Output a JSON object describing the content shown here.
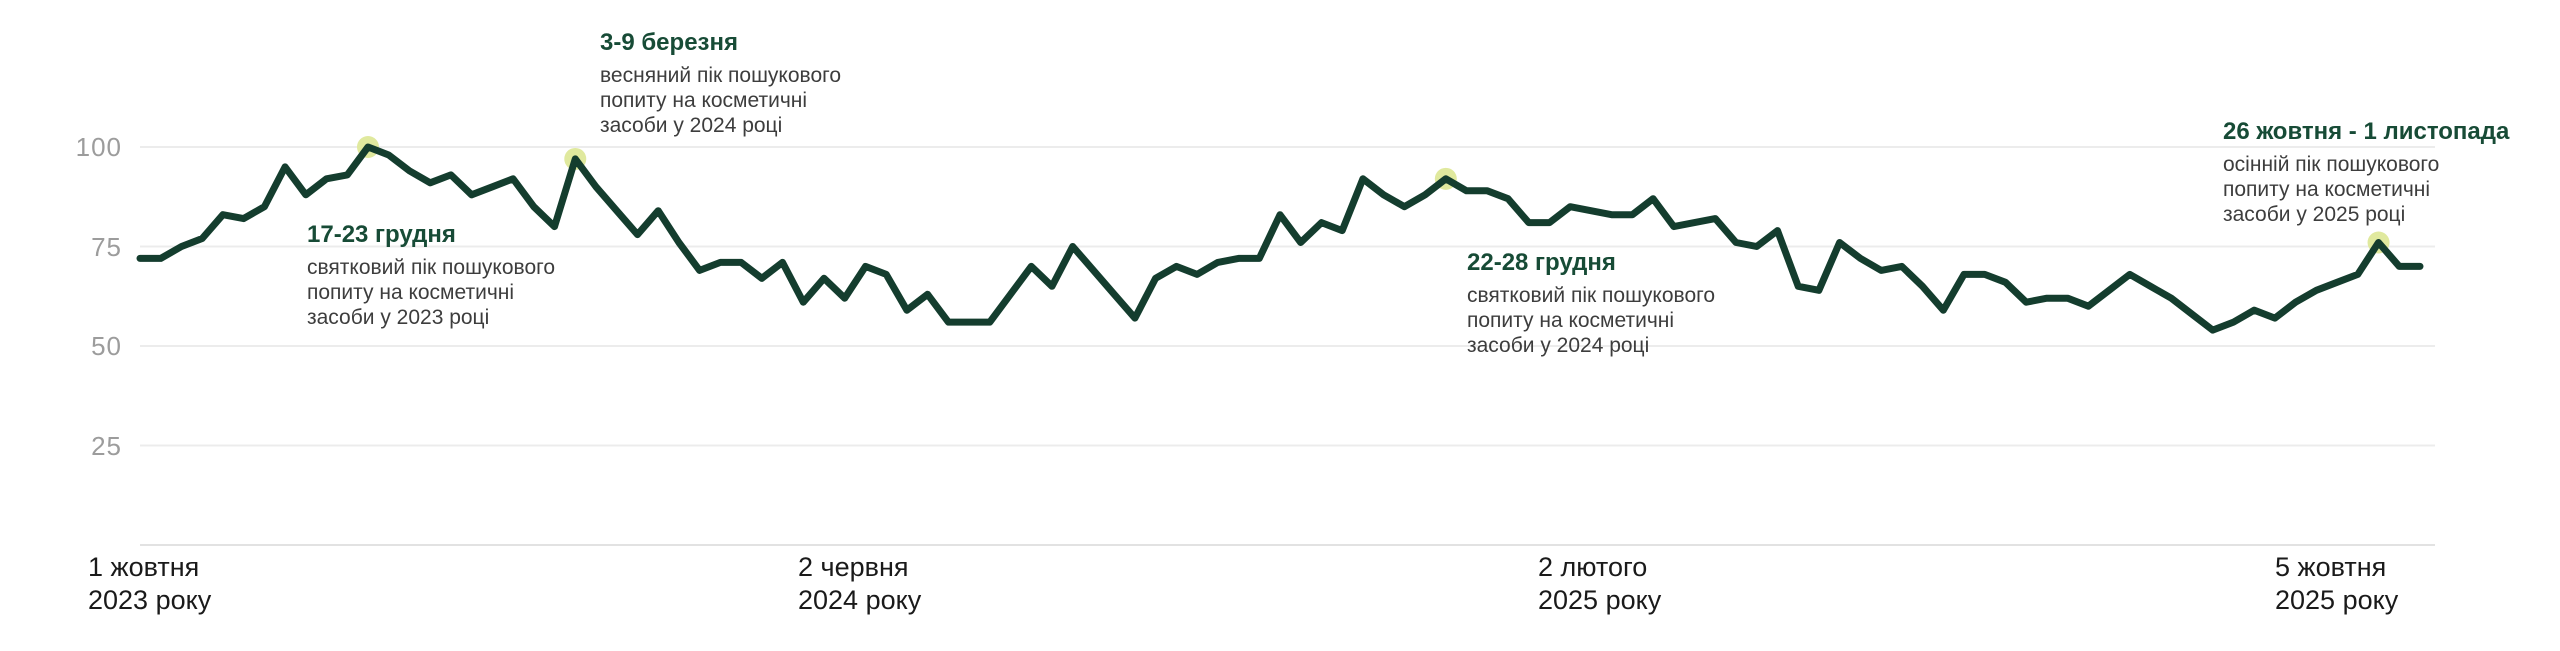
{
  "chart_data": {
    "type": "line",
    "y_axis": {
      "tick_labels": [
        "100",
        "75",
        "50",
        "25"
      ],
      "ticks": [
        100,
        75,
        50,
        25
      ],
      "range": [
        0,
        100
      ],
      "grid": true
    },
    "x_axis": {
      "tick_labels": [
        {
          "line1": "1 жовтня",
          "line2": "2023 року"
        },
        {
          "line1": "2 червня",
          "line2": "2024 року"
        },
        {
          "line1": "2 лютого",
          "line2": "2025 року"
        },
        {
          "line1": "5 жовтня",
          "line2": "2025 року"
        }
      ]
    },
    "series": [
      {
        "name": "пошуковий попит на косметичні засоби",
        "color": "#143d2e",
        "values": [
          72,
          72,
          75,
          77,
          83,
          82,
          85,
          95,
          88,
          92,
          93,
          100,
          98,
          94,
          91,
          93,
          88,
          90,
          92,
          85,
          80,
          97,
          90,
          84,
          78,
          84,
          76,
          69,
          71,
          71,
          67,
          71,
          61,
          67,
          62,
          70,
          68,
          59,
          63,
          56,
          56,
          56,
          63,
          70,
          65,
          75,
          69,
          63,
          57,
          67,
          70,
          68,
          71,
          72,
          72,
          83,
          76,
          81,
          79,
          92,
          88,
          85,
          88,
          92,
          89,
          89,
          87,
          81,
          81,
          85,
          84,
          83,
          83,
          87,
          80,
          81,
          82,
          76,
          75,
          79,
          65,
          64,
          76,
          72,
          69,
          70,
          65,
          59,
          68,
          68,
          66,
          61,
          62,
          62,
          60,
          64,
          68,
          65,
          62,
          58,
          54,
          56,
          59,
          57,
          61,
          64,
          66,
          68,
          76,
          70,
          70
        ]
      }
    ],
    "annotations": [
      {
        "title": "17-23 грудня",
        "body_lines": [
          "святковий пік пошукового",
          "попиту на косметичні",
          "засоби у 2023 році"
        ],
        "point_index": 11,
        "point_value": 100
      },
      {
        "title": "3-9 березня",
        "body_lines": [
          "весняний пік пошукового",
          "попиту на косметичні",
          "засоби у 2024 році"
        ],
        "point_index": 21,
        "point_value": 97
      },
      {
        "title": "22-28 грудня",
        "body_lines": [
          "святковий пік пошукового",
          "попиту на косметичні",
          "засоби у 2024 році"
        ],
        "point_index": 63,
        "point_value": 92
      },
      {
        "title": "26 жовтня - 1 листопада",
        "body_lines": [
          "осінній пік пошукового",
          "попиту на косметичні",
          "засоби у 2025 році"
        ],
        "point_index": 108,
        "point_value": 76
      }
    ],
    "legend": {
      "visible": false
    }
  },
  "colors": {
    "line": "#143d2e",
    "peak_marker": "#e0e99e",
    "gridline": "#ececec",
    "baseline": "#e2e2e2",
    "annotation_title": "#174b36",
    "annotation_body": "#3d3d3d",
    "y_tick": "#9c9c9c",
    "x_tick": "#1a1a1a",
    "background": "#ffffff"
  }
}
